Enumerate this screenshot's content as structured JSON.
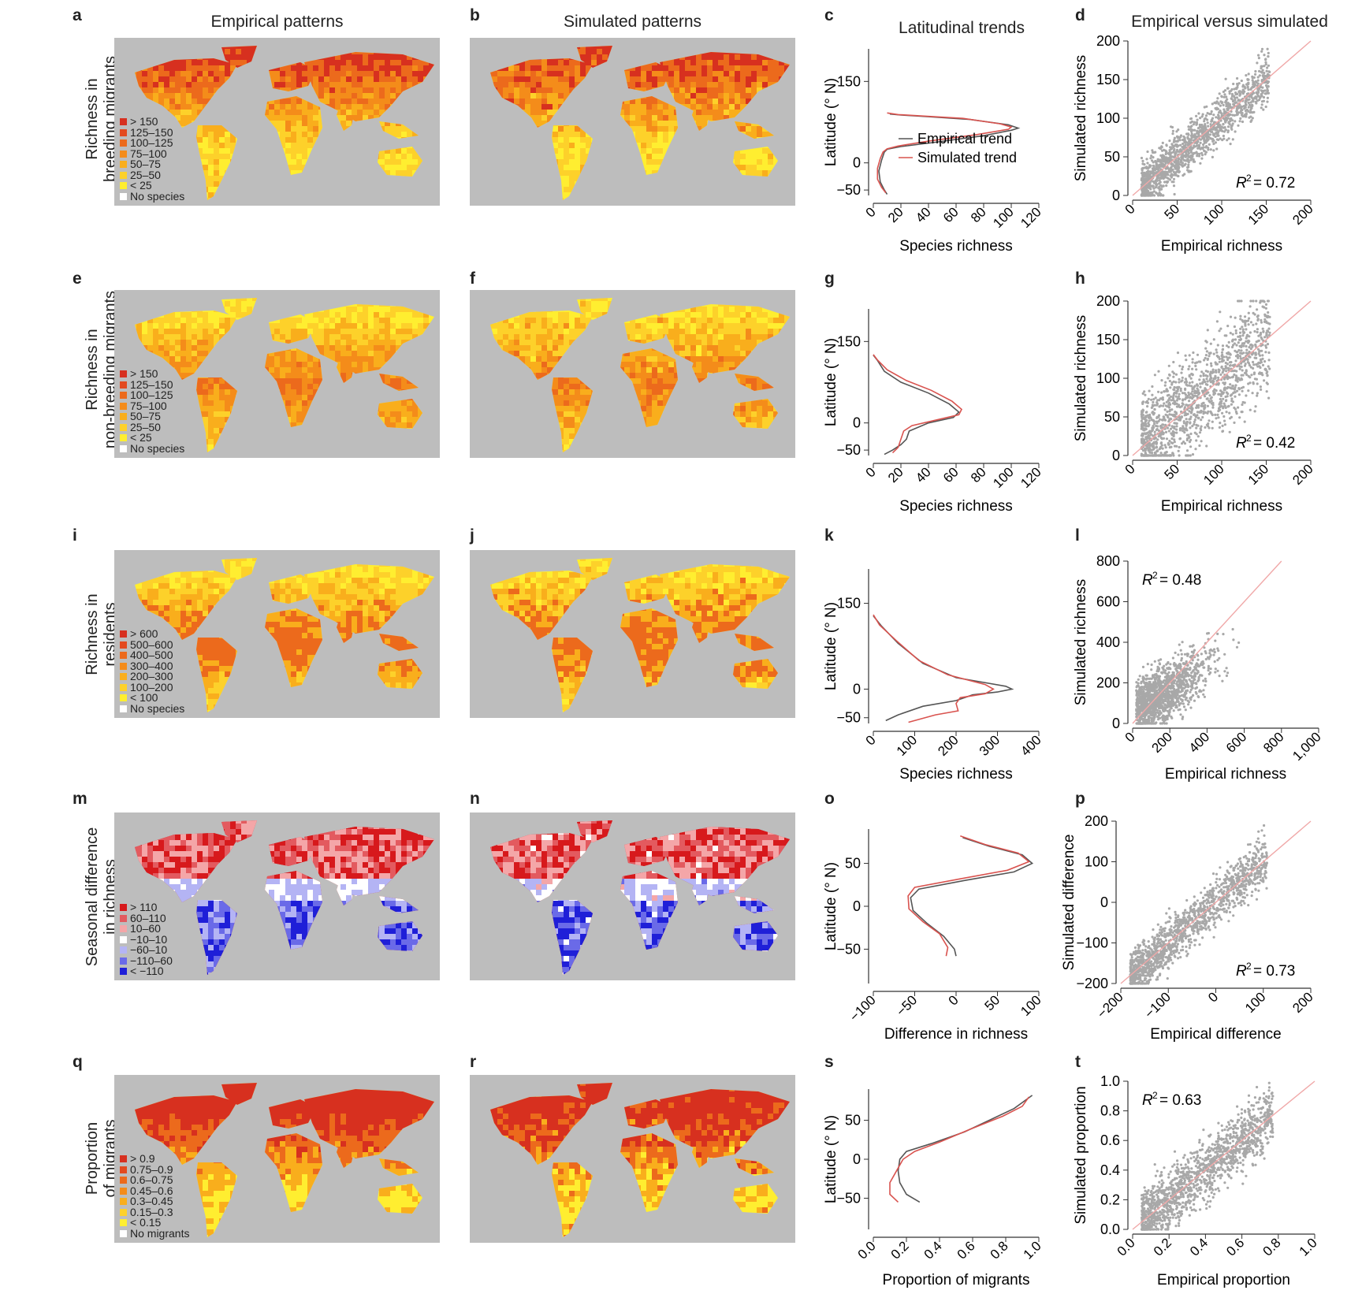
{
  "column_titles": {
    "a": "Empirical patterns",
    "b": "Simulated patterns",
    "c": "Latitudinal trends",
    "d": "Empirical versus simulated"
  },
  "panel_letters": [
    "a",
    "b",
    "c",
    "d",
    "e",
    "f",
    "g",
    "h",
    "i",
    "j",
    "k",
    "l",
    "m",
    "n",
    "o",
    "p",
    "q",
    "r",
    "s",
    "t"
  ],
  "rows": [
    {
      "label_lines": [
        "Richness in",
        "breeding migrants"
      ],
      "legend": [
        {
          "text": "> 150",
          "color": "#d7301f"
        },
        {
          "text": "125–150",
          "color": "#e34a1f"
        },
        {
          "text": "100–125",
          "color": "#ec6a1c"
        },
        {
          "text": "75–100",
          "color": "#f48c1a"
        },
        {
          "text": "50–75",
          "color": "#f9ae1c"
        },
        {
          "text": "25–50",
          "color": "#fdd12a"
        },
        {
          "text": "< 25",
          "color": "#ffee30"
        },
        {
          "text": "No species",
          "color": "#ffffff"
        }
      ],
      "map_palette": [
        "#ffee30",
        "#fdd12a",
        "#f9ae1c",
        "#f48c1a",
        "#ec6a1c",
        "#d7301f"
      ]
    },
    {
      "label_lines": [
        "Richness in",
        "non-breeding migrants"
      ],
      "legend": [
        {
          "text": "> 150",
          "color": "#d7301f"
        },
        {
          "text": "125–150",
          "color": "#e34a1f"
        },
        {
          "text": "100–125",
          "color": "#ec6a1c"
        },
        {
          "text": "75–100",
          "color": "#f48c1a"
        },
        {
          "text": "50–75",
          "color": "#f9ae1c"
        },
        {
          "text": "25–50",
          "color": "#fdd12a"
        },
        {
          "text": "< 25",
          "color": "#ffee30"
        },
        {
          "text": "No species",
          "color": "#ffffff"
        }
      ],
      "map_palette": [
        "#ffee30",
        "#fdd12a",
        "#f9ae1c",
        "#f48c1a",
        "#ec6a1c"
      ]
    },
    {
      "label_lines": [
        "Richness in",
        "residents"
      ],
      "legend": [
        {
          "text": "> 600",
          "color": "#d7301f"
        },
        {
          "text": "500–600",
          "color": "#e34a1f"
        },
        {
          "text": "400–500",
          "color": "#ec6a1c"
        },
        {
          "text": "300–400",
          "color": "#f48c1a"
        },
        {
          "text": "200–300",
          "color": "#f9ae1c"
        },
        {
          "text": "100–200",
          "color": "#fdd12a"
        },
        {
          "text": "< 100",
          "color": "#ffee30"
        },
        {
          "text": "No species",
          "color": "#ffffff"
        }
      ],
      "map_palette": [
        "#ffee30",
        "#fdd12a",
        "#f9ae1c",
        "#ec6a1c"
      ]
    },
    {
      "label_lines": [
        "Seasonal difference",
        "in richness"
      ],
      "legend": [
        {
          "text": "> 110",
          "color": "#d7191c"
        },
        {
          "text": "60–110",
          "color": "#e35a5f"
        },
        {
          "text": "10–60",
          "color": "#f4a6a8"
        },
        {
          "text": "−10–10",
          "color": "#ffffff"
        },
        {
          "text": "−60–10",
          "color": "#b4b4f4"
        },
        {
          "text": "−110–60",
          "color": "#6a6ae8"
        },
        {
          "text": "< −110",
          "color": "#1f1fd8"
        }
      ],
      "map_palette": [
        "#d7191c",
        "#e35a5f",
        "#f4a6a8",
        "#ffffff",
        "#b4b4f4",
        "#6a6ae8",
        "#1f1fd8"
      ]
    },
    {
      "label_lines": [
        "Proportion",
        "of migrants"
      ],
      "legend": [
        {
          "text": "> 0.9",
          "color": "#d7301f"
        },
        {
          "text": "0.75–0.9",
          "color": "#e34a1f"
        },
        {
          "text": "0.6–0.75",
          "color": "#ec6a1c"
        },
        {
          "text": "0.45–0.6",
          "color": "#f48c1a"
        },
        {
          "text": "0.3–0.45",
          "color": "#f9ae1c"
        },
        {
          "text": "0.15–0.3",
          "color": "#fdd12a"
        },
        {
          "text": "< 0.15",
          "color": "#ffee30"
        },
        {
          "text": "No migrants",
          "color": "#ffffff"
        }
      ],
      "map_palette": [
        "#ffee30",
        "#f9ae1c",
        "#ec6a1c",
        "#d7301f"
      ]
    }
  ],
  "chart_data": [
    {
      "panel": "c",
      "type": "line",
      "title": "Latitudinal trends",
      "xlabel": "Species richness",
      "ylabel": "Latitude (° N)",
      "xlim": [
        0,
        120
      ],
      "ylim": [
        -60,
        210
      ],
      "xticks": [
        "0",
        "20",
        "40",
        "60",
        "80",
        "100",
        "120"
      ],
      "yticks": [
        "150",
        "0",
        "−50"
      ],
      "ytick_values": [
        150,
        0,
        -50
      ],
      "legend": [
        "Empirical trend",
        "Simulated trend"
      ],
      "series": [
        {
          "name": "Empirical trend",
          "color": "#555555",
          "x": [
            10,
            8,
            5,
            4,
            6,
            8,
            10,
            20,
            45,
            80,
            100,
            105,
            98,
            70,
            40,
            20,
            12
          ],
          "y": [
            -58,
            -50,
            -35,
            -15,
            5,
            20,
            25,
            30,
            38,
            50,
            60,
            64,
            70,
            80,
            85,
            88,
            90
          ]
        },
        {
          "name": "Simulated trend",
          "color": "#d9534f",
          "x": [
            9,
            6,
            3,
            3,
            5,
            7,
            10,
            18,
            40,
            75,
            98,
            100,
            92,
            65,
            38,
            18,
            10
          ],
          "y": [
            -55,
            -45,
            -30,
            -10,
            8,
            20,
            26,
            31,
            40,
            52,
            62,
            66,
            72,
            82,
            86,
            89,
            92
          ]
        }
      ]
    },
    {
      "panel": "d",
      "type": "scatter",
      "title": "Empirical versus simulated",
      "xlabel": "Empirical richness",
      "ylabel": "Simulated richness",
      "xlim": [
        0,
        200
      ],
      "ylim": [
        0,
        200
      ],
      "xticks": [
        "0",
        "50",
        "100",
        "150",
        "200"
      ],
      "yticks": [
        "200",
        "150",
        "100",
        "50",
        "0"
      ],
      "annotation": "= 0.72",
      "r2": 0.72,
      "fit_line": [
        [
          0,
          0
        ],
        [
          200,
          200
        ]
      ]
    },
    {
      "panel": "g",
      "type": "line",
      "xlabel": "Species richness",
      "ylabel": "Latitude (° N)",
      "xlim": [
        0,
        120
      ],
      "ylim": [
        -60,
        210
      ],
      "xticks": [
        "0",
        "20",
        "40",
        "60",
        "80",
        "100",
        "120"
      ],
      "yticks": [
        "150",
        "0",
        "−50"
      ],
      "ytick_values": [
        150,
        0,
        -50
      ],
      "series": [
        {
          "name": "Empirical trend",
          "color": "#555555",
          "x": [
            8,
            14,
            20,
            24,
            26,
            40,
            58,
            62,
            55,
            40,
            20,
            8,
            3,
            0
          ],
          "y": [
            -58,
            -50,
            -40,
            -30,
            -15,
            0,
            10,
            20,
            35,
            55,
            75,
            95,
            115,
            125
          ]
        },
        {
          "name": "Simulated trend",
          "color": "#d9534f",
          "x": [
            14,
            18,
            20,
            22,
            28,
            45,
            62,
            64,
            57,
            42,
            24,
            10,
            3,
            0
          ],
          "y": [
            -55,
            -45,
            -30,
            -15,
            -5,
            5,
            15,
            25,
            40,
            60,
            78,
            98,
            116,
            126
          ]
        }
      ]
    },
    {
      "panel": "h",
      "type": "scatter",
      "xlabel": "Empirical richness",
      "ylabel": "Simulated richness",
      "xlim": [
        0,
        200
      ],
      "ylim": [
        0,
        200
      ],
      "xticks": [
        "0",
        "50",
        "100",
        "150",
        "200"
      ],
      "yticks": [
        "200",
        "150",
        "100",
        "50",
        "0"
      ],
      "annotation": "= 0.42",
      "r2": 0.42,
      "fit_line": [
        [
          0,
          0
        ],
        [
          200,
          200
        ]
      ]
    },
    {
      "panel": "k",
      "type": "line",
      "xlabel": "Species richness",
      "ylabel": "Latitude (° N)",
      "xlim": [
        0,
        400
      ],
      "ylim": [
        -60,
        210
      ],
      "xticks": [
        "0",
        "100",
        "200",
        "300",
        "400"
      ],
      "yticks": [
        "150",
        "0",
        "−50"
      ],
      "ytick_values": [
        150,
        0,
        -50
      ],
      "series": [
        {
          "name": "Empirical trend",
          "color": "#555555",
          "x": [
            30,
            60,
            120,
            200,
            240,
            300,
            335,
            320,
            200,
            120,
            60,
            20,
            0
          ],
          "y": [
            -55,
            -45,
            -30,
            -20,
            -10,
            -5,
            0,
            5,
            20,
            45,
            80,
            110,
            128
          ]
        },
        {
          "name": "Simulated trend",
          "color": "#d9534f",
          "x": [
            85,
            150,
            205,
            200,
            210,
            270,
            290,
            270,
            180,
            110,
            55,
            15,
            0
          ],
          "y": [
            -58,
            -45,
            -38,
            -25,
            -15,
            -8,
            0,
            8,
            25,
            50,
            85,
            112,
            130
          ]
        }
      ]
    },
    {
      "panel": "l",
      "type": "scatter",
      "xlabel": "Empirical richness",
      "ylabel": "Simulated richness",
      "xlim": [
        0,
        1000
      ],
      "ylim": [
        0,
        800
      ],
      "xticks": [
        "0",
        "200",
        "400",
        "600",
        "800",
        "1,000"
      ],
      "yticks": [
        "800",
        "600",
        "400",
        "200",
        "0"
      ],
      "annotation": "= 0.48",
      "r2": 0.48,
      "fit_line": [
        [
          0,
          0
        ],
        [
          800,
          800
        ]
      ]
    },
    {
      "panel": "o",
      "type": "line",
      "xlabel": "Difference in richness",
      "ylabel": "Latitude (° N)",
      "xlim": [
        -100,
        100
      ],
      "ylim": [
        -90,
        90
      ],
      "xticks": [
        "−100",
        "−50",
        "0",
        "50",
        "100"
      ],
      "yticks": [
        "50",
        "0",
        "−50"
      ],
      "ytick_values": [
        50,
        0,
        -50
      ],
      "series": [
        {
          "name": "Empirical trend",
          "color": "#555555",
          "x": [
            0,
            -2,
            -15,
            -35,
            -52,
            -55,
            -45,
            10,
            70,
            92,
            80,
            40,
            8
          ],
          "y": [
            -58,
            -50,
            -35,
            -20,
            -5,
            10,
            20,
            30,
            40,
            50,
            60,
            70,
            80
          ]
        },
        {
          "name": "Simulated trend",
          "color": "#d9534f",
          "x": [
            -12,
            -10,
            -20,
            -40,
            -57,
            -58,
            -50,
            5,
            62,
            88,
            75,
            35,
            5
          ],
          "y": [
            -58,
            -48,
            -32,
            -18,
            -3,
            12,
            22,
            32,
            42,
            52,
            62,
            72,
            82
          ]
        }
      ]
    },
    {
      "panel": "p",
      "type": "scatter",
      "xlabel": "Empirical difference",
      "ylabel": "Simulated difference",
      "xlim": [
        -200,
        200
      ],
      "ylim": [
        -200,
        200
      ],
      "xticks": [
        "−200",
        "−100",
        "0",
        "100",
        "200"
      ],
      "yticks": [
        "200",
        "100",
        "0",
        "−100",
        "−200"
      ],
      "annotation": "= 0.73",
      "r2": 0.73,
      "fit_line": [
        [
          -200,
          -200
        ],
        [
          200,
          200
        ]
      ]
    },
    {
      "panel": "s",
      "type": "line",
      "xlabel": "Proportion of migrants",
      "ylabel": "Latitude (° N)",
      "xlim": [
        0,
        1
      ],
      "ylim": [
        -90,
        90
      ],
      "xticks": [
        "0.0",
        "0.2",
        "0.4",
        "0.6",
        "0.8",
        "1.0"
      ],
      "yticks": [
        "50",
        "0",
        "−50"
      ],
      "ytick_values": [
        50,
        0,
        -50
      ],
      "series": [
        {
          "name": "Empirical trend",
          "color": "#555555",
          "x": [
            0.28,
            0.2,
            0.16,
            0.15,
            0.16,
            0.2,
            0.35,
            0.55,
            0.7,
            0.85,
            0.96
          ],
          "y": [
            -55,
            -45,
            -30,
            -15,
            0,
            10,
            20,
            35,
            50,
            65,
            82
          ]
        },
        {
          "name": "Simulated trend",
          "color": "#d9534f",
          "x": [
            0.15,
            0.1,
            0.1,
            0.14,
            0.18,
            0.25,
            0.4,
            0.58,
            0.78,
            0.9,
            0.94
          ],
          "y": [
            -55,
            -45,
            -30,
            -15,
            0,
            10,
            22,
            38,
            55,
            68,
            80
          ]
        }
      ]
    },
    {
      "panel": "t",
      "type": "scatter",
      "xlabel": "Empirical proportion",
      "ylabel": "Simulated proportion",
      "xlim": [
        0,
        1
      ],
      "ylim": [
        0,
        1
      ],
      "xticks": [
        "0.0",
        "0.2",
        "0.4",
        "0.6",
        "0.8",
        "1.0"
      ],
      "yticks": [
        "1.0",
        "0.8",
        "0.6",
        "0.4",
        "0.2",
        "0.0"
      ],
      "annotation": "= 0.63",
      "r2": 0.63,
      "fit_line": [
        [
          0,
          0
        ],
        [
          1,
          1
        ]
      ]
    }
  ]
}
